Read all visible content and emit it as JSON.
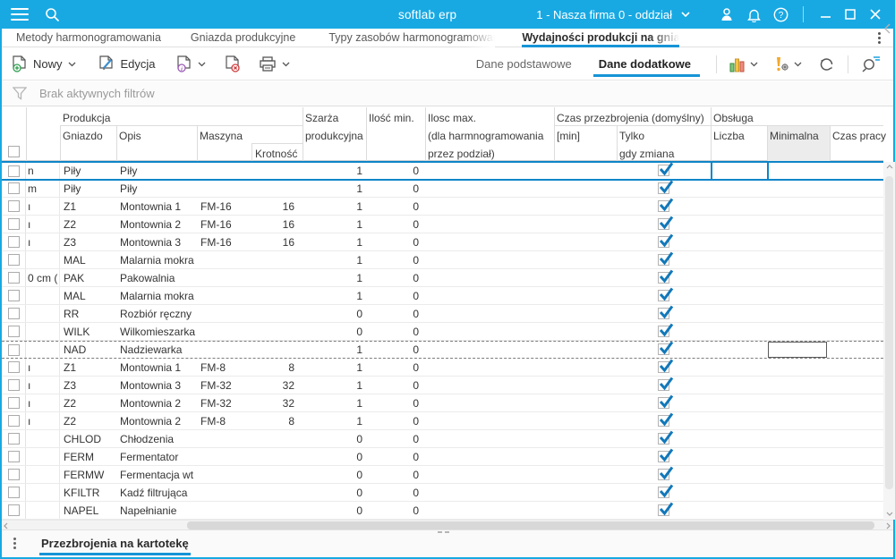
{
  "colors": {
    "topbar": "#18a9e3",
    "accent_underline": "#1694d6",
    "selected_row_border": "#0d85c8",
    "checkmark": "#1178ba",
    "minimalna_col_bg": "#ececec"
  },
  "topbar": {
    "title": "softlab erp",
    "company_selector": "1 - Nasza firma 0 - oddział"
  },
  "tabs": [
    {
      "label": "Metody harmonogramowania",
      "active": false
    },
    {
      "label": "Gniazda produkcyjne",
      "active": false
    },
    {
      "label": "Typy zasobów harmonogramowanych",
      "active": false
    },
    {
      "label": "Wydajności produkcji na gniazdach",
      "active": true
    }
  ],
  "toolbar": {
    "new_label": "Nowy",
    "edit_label": "Edycja",
    "view_primary": "Dane podstawowe",
    "view_secondary": "Dane dodatkowe"
  },
  "filter": {
    "text": "Brak aktywnych filtrów"
  },
  "table": {
    "groups": {
      "produkcja": "Produkcja",
      "czas_przezbrojenia": "Czas przezbrojenia (domyślny)",
      "obsluga": "Obsługa"
    },
    "columns": {
      "gniazdo": "Gniazdo",
      "opis": "Opis",
      "maszyna": "Maszyna",
      "krotnosc": "Krotność",
      "szarza_l1": "Szarża",
      "szarza_l2": "produkcyjna",
      "ilosc_min": "Ilość min.",
      "ilosc_max_l1": "Ilosc max.",
      "ilosc_max_l2": "(dla harmnogramowania",
      "ilosc_max_l3": "przez podział)",
      "min_unit": "[min]",
      "tylko_l1": "Tylko",
      "tylko_l2": "gdy zmiana",
      "liczba": "Liczba",
      "minimalna": "Minimalna",
      "czas_pracy": "Czas pracy"
    },
    "rows": [
      {
        "frag": "n",
        "gniazdo": "Piły",
        "opis": "Piły",
        "maszyna": "",
        "krotnosc": "",
        "szarza": "1",
        "ilosc_min": "0",
        "tylko": true,
        "selected": true
      },
      {
        "frag": "m",
        "gniazdo": "Piły",
        "opis": "Piły",
        "maszyna": "",
        "krotnosc": "",
        "szarza": "1",
        "ilosc_min": "0",
        "tylko": true
      },
      {
        "frag": "ı",
        "gniazdo": "Z1",
        "opis": "Montownia 1",
        "maszyna": "FM-16",
        "krotnosc": "16",
        "szarza": "1",
        "ilosc_min": "0",
        "tylko": true
      },
      {
        "frag": "ı",
        "gniazdo": "Z2",
        "opis": "Montownia 2",
        "maszyna": "FM-16",
        "krotnosc": "16",
        "szarza": "1",
        "ilosc_min": "0",
        "tylko": true
      },
      {
        "frag": "ı",
        "gniazdo": "Z3",
        "opis": "Montownia 3",
        "maszyna": "FM-16",
        "krotnosc": "16",
        "szarza": "1",
        "ilosc_min": "0",
        "tylko": true
      },
      {
        "frag": "",
        "gniazdo": "MAL",
        "opis": "Malarnia mokra",
        "maszyna": "",
        "krotnosc": "",
        "szarza": "1",
        "ilosc_min": "0",
        "tylko": true
      },
      {
        "frag": "0 cm (",
        "gniazdo": "PAK",
        "opis": "Pakowalnia",
        "maszyna": "",
        "krotnosc": "",
        "szarza": "1",
        "ilosc_min": "0",
        "tylko": true
      },
      {
        "frag": "",
        "gniazdo": "MAL",
        "opis": "Malarnia mokra",
        "maszyna": "",
        "krotnosc": "",
        "szarza": "1",
        "ilosc_min": "0",
        "tylko": true
      },
      {
        "frag": "",
        "gniazdo": "RR",
        "opis": "Rozbiór ręczny",
        "maszyna": "",
        "krotnosc": "",
        "szarza": "0",
        "ilosc_min": "0",
        "tylko": true
      },
      {
        "frag": "",
        "gniazdo": "WILK",
        "opis": "Wilkomieszarka",
        "maszyna": "",
        "krotnosc": "",
        "szarza": "0",
        "ilosc_min": "0",
        "tylko": true
      },
      {
        "frag": "",
        "gniazdo": "NAD",
        "opis": "Nadziewarka",
        "maszyna": "",
        "krotnosc": "",
        "szarza": "1",
        "ilosc_min": "0",
        "tylko": true,
        "focused": true,
        "editing": true
      },
      {
        "frag": "ı",
        "gniazdo": "Z1",
        "opis": "Montownia 1",
        "maszyna": "FM-8",
        "krotnosc": "8",
        "szarza": "1",
        "ilosc_min": "0",
        "tylko": true
      },
      {
        "frag": "ı",
        "gniazdo": "Z3",
        "opis": "Montownia 3",
        "maszyna": "FM-32",
        "krotnosc": "32",
        "szarza": "1",
        "ilosc_min": "0",
        "tylko": true
      },
      {
        "frag": "ı",
        "gniazdo": "Z2",
        "opis": "Montownia 2",
        "maszyna": "FM-32",
        "krotnosc": "32",
        "szarza": "1",
        "ilosc_min": "0",
        "tylko": true
      },
      {
        "frag": "ı",
        "gniazdo": "Z2",
        "opis": "Montownia 2",
        "maszyna": "FM-8",
        "krotnosc": "8",
        "szarza": "1",
        "ilosc_min": "0",
        "tylko": true
      },
      {
        "frag": "",
        "gniazdo": "CHLOD",
        "opis": "Chłodzenia",
        "maszyna": "",
        "krotnosc": "",
        "szarza": "0",
        "ilosc_min": "0",
        "tylko": true
      },
      {
        "frag": "",
        "gniazdo": "FERM",
        "opis": "Fermentator",
        "maszyna": "",
        "krotnosc": "",
        "szarza": "0",
        "ilosc_min": "0",
        "tylko": true
      },
      {
        "frag": "",
        "gniazdo": "FERMW",
        "opis": "Fermentacja wt",
        "maszyna": "",
        "krotnosc": "",
        "szarza": "0",
        "ilosc_min": "0",
        "tylko": true
      },
      {
        "frag": "",
        "gniazdo": "KFILTR",
        "opis": "Kadź filtrująca",
        "maszyna": "",
        "krotnosc": "",
        "szarza": "0",
        "ilosc_min": "0",
        "tylko": true
      },
      {
        "frag": "",
        "gniazdo": "NAPEL",
        "opis": "Napełnianie",
        "maszyna": "",
        "krotnosc": "",
        "szarza": "0",
        "ilosc_min": "0",
        "tylko": true
      }
    ]
  },
  "bottom": {
    "tab": "Przezbrojenia na kartotekę"
  }
}
